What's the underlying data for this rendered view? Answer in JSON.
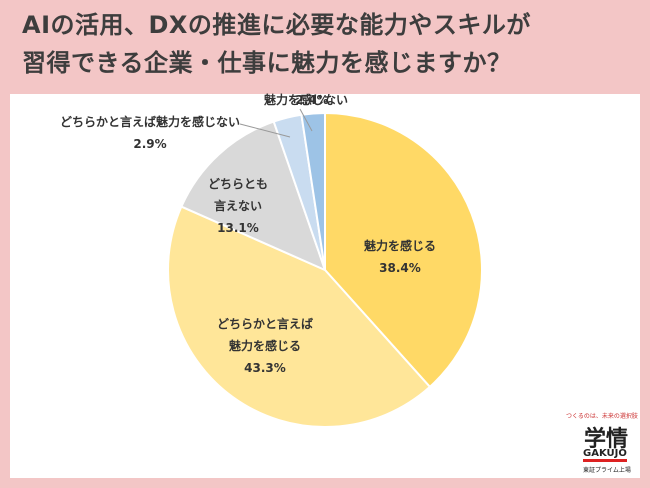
{
  "chart_data": {
    "type": "pie",
    "title": "AIの活用、DXの推進に必要な能力やスキルが\n習得できる企業・仕事に魅力を感じますか？",
    "categories": [
      "魅力を感じる",
      "どちらかと言えば\n魅力を感じる",
      "どちらとも\n言えない",
      "どちらかと言えば魅力を感じない",
      "魅力を感じない"
    ],
    "values": [
      38.4,
      43.3,
      13.1,
      2.9,
      2.4
    ],
    "value_labels": [
      "38.4%",
      "43.3%",
      "13.1%",
      "2.9%",
      "2.4%"
    ],
    "colors": [
      "#FFD966",
      "#FFE699",
      "#D9D9D9",
      "#C9DCF0",
      "#9DC3E6"
    ]
  },
  "logo": {
    "tagline": "つくるのは、未来の選択肢",
    "name": "学情",
    "roman": "GAKUJO",
    "note": "東証プライム上場"
  }
}
